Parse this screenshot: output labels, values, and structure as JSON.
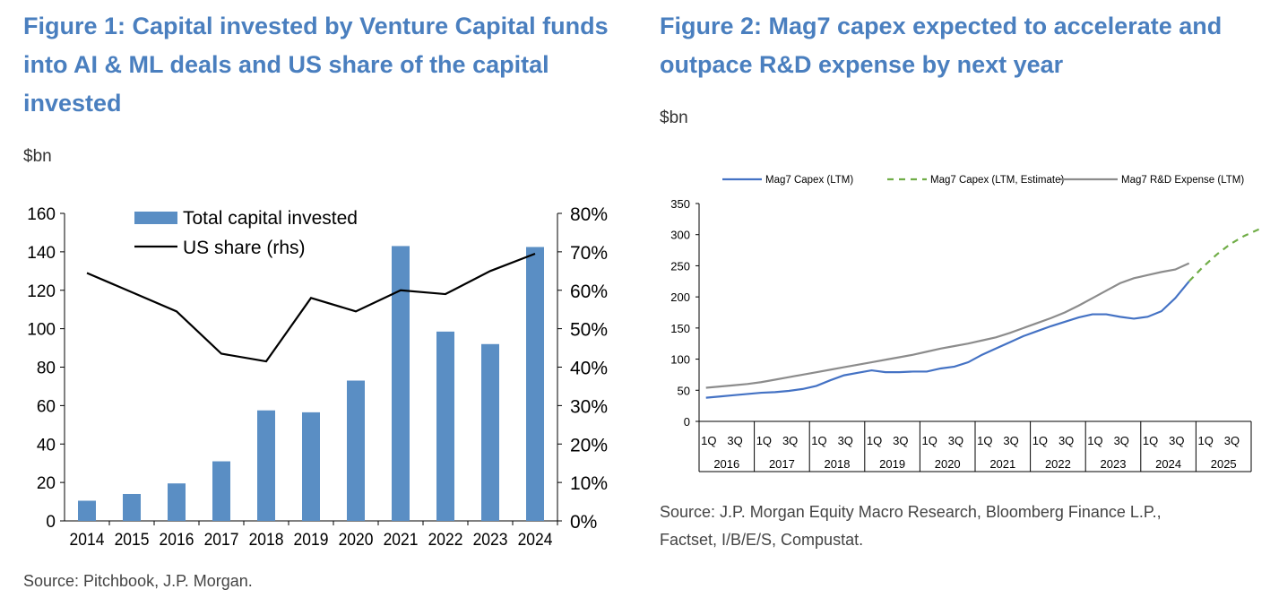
{
  "figure1": {
    "title": "Figure 1: Capital invested by Venture Capital funds into AI & ML deals and US share of the capital invested",
    "unit": "$bn",
    "source": "Source: Pitchbook, J.P. Morgan.",
    "chart_data": {
      "type": "bar",
      "categories": [
        "2014",
        "2015",
        "2016",
        "2017",
        "2018",
        "2019",
        "2020",
        "2021",
        "2022",
        "2023",
        "2024"
      ],
      "series": [
        {
          "name": "Total capital invested",
          "type": "bar",
          "axis": "left",
          "color": "#5a8ec4",
          "values": [
            10.5,
            14,
            19.5,
            31,
            57.5,
            56.5,
            73,
            143,
            98.5,
            92,
            142.5
          ]
        },
        {
          "name": "US share (rhs)",
          "type": "line",
          "axis": "right",
          "color": "#000000",
          "values": [
            64.5,
            59.5,
            54.5,
            43.5,
            41.5,
            58,
            54.5,
            60,
            59,
            65,
            69.5
          ]
        }
      ],
      "ylim": [
        0,
        160
      ],
      "yticks": [
        "0",
        "20",
        "40",
        "60",
        "80",
        "100",
        "120",
        "140",
        "160"
      ],
      "y2lim": [
        0,
        80
      ],
      "y2ticks": [
        "0%",
        "10%",
        "20%",
        "30%",
        "40%",
        "50%",
        "60%",
        "70%",
        "80%"
      ],
      "legend_position": "top-center"
    }
  },
  "figure2": {
    "title": "Figure 2: Mag7 capex expected to accelerate and outpace R&D expense by next year",
    "unit": "$bn",
    "source": "Source: J.P. Morgan Equity Macro Research, Bloomberg Finance L.P., Factset, I/B/E/S, Compustat.",
    "chart_data": {
      "type": "line",
      "quarter_labels": [
        "1Q",
        "3Q"
      ],
      "years": [
        "2016",
        "2017",
        "2018",
        "2019",
        "2020",
        "2021",
        "2022",
        "2023",
        "2024",
        "2025"
      ],
      "ylim": [
        0,
        350
      ],
      "yticks": [
        "0",
        "50",
        "100",
        "150",
        "200",
        "250",
        "300",
        "350"
      ],
      "legend_position": "top",
      "series": [
        {
          "name": "Mag7 Capex (LTM)",
          "color": "#4472c4",
          "dash": false,
          "start": "1Q 2016",
          "values": [
            38,
            40,
            42,
            44,
            46,
            47,
            49,
            52,
            57,
            66,
            74,
            78,
            82,
            79,
            79,
            80,
            80,
            85,
            88,
            95,
            107,
            117,
            127,
            137,
            145,
            153,
            160,
            167,
            172,
            172,
            168,
            165,
            168,
            177,
            198,
            225
          ]
        },
        {
          "name": "Mag7 Capex (LTM, Estimate)",
          "color": "#70ad47",
          "dash": true,
          "start": "4Q 2024",
          "values": [
            225,
            248,
            268,
            285,
            298,
            308,
            312
          ]
        },
        {
          "name": "Mag7 R&D Expense (LTM)",
          "color": "#8c8c8c",
          "dash": false,
          "start": "1Q 2016",
          "values": [
            54,
            56,
            58,
            60,
            63,
            67,
            71,
            75,
            79,
            83,
            87,
            91,
            95,
            99,
            103,
            107,
            112,
            117,
            121,
            125,
            130,
            135,
            142,
            150,
            158,
            166,
            175,
            186,
            198,
            210,
            222,
            230,
            235,
            240,
            244,
            254
          ]
        }
      ]
    }
  }
}
